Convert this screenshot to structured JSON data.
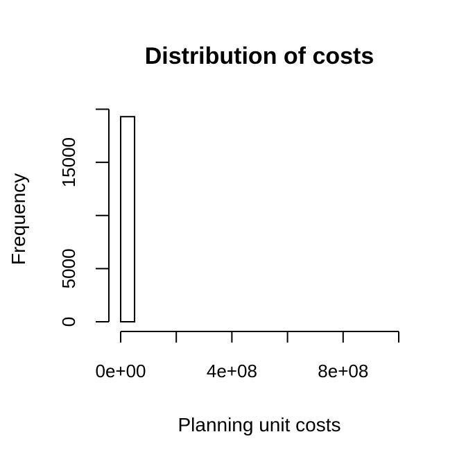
{
  "chart_data": {
    "type": "bar",
    "title": "Distribution of costs",
    "xlabel": "Planning unit costs",
    "ylabel": "Frequency",
    "xlim": [
      0,
      1000000000
    ],
    "ylim": [
      0,
      20000
    ],
    "x_ticks": [
      0,
      200000000,
      400000000,
      600000000,
      800000000,
      1000000000
    ],
    "x_tick_labels": [
      "0e+00",
      "4e+08",
      "8e+08"
    ],
    "x_tick_label_values": [
      0,
      400000000,
      800000000
    ],
    "y_ticks": [
      0,
      5000,
      10000,
      15000,
      20000
    ],
    "y_tick_labels": [
      "0",
      "5000",
      "15000"
    ],
    "y_tick_label_values": [
      0,
      5000,
      15000
    ],
    "bin_width": 50000000,
    "bins": [
      {
        "x0": 0,
        "x1": 50000000,
        "count": 19300
      },
      {
        "x0": 50000000,
        "x1": 100000000,
        "count": 0
      },
      {
        "x0": 100000000,
        "x1": 150000000,
        "count": 0
      },
      {
        "x0": 150000000,
        "x1": 200000000,
        "count": 0
      },
      {
        "x0": 200000000,
        "x1": 250000000,
        "count": 0
      },
      {
        "x0": 250000000,
        "x1": 300000000,
        "count": 0
      },
      {
        "x0": 300000000,
        "x1": 350000000,
        "count": 0
      },
      {
        "x0": 350000000,
        "x1": 400000000,
        "count": 0
      },
      {
        "x0": 400000000,
        "x1": 450000000,
        "count": 0
      },
      {
        "x0": 450000000,
        "x1": 500000000,
        "count": 0
      },
      {
        "x0": 500000000,
        "x1": 550000000,
        "count": 0
      },
      {
        "x0": 550000000,
        "x1": 600000000,
        "count": 0
      },
      {
        "x0": 600000000,
        "x1": 650000000,
        "count": 0
      },
      {
        "x0": 650000000,
        "x1": 700000000,
        "count": 0
      },
      {
        "x0": 700000000,
        "x1": 750000000,
        "count": 0
      },
      {
        "x0": 750000000,
        "x1": 800000000,
        "count": 0
      },
      {
        "x0": 800000000,
        "x1": 850000000,
        "count": 0
      },
      {
        "x0": 850000000,
        "x1": 900000000,
        "count": 0
      },
      {
        "x0": 900000000,
        "x1": 950000000,
        "count": 0
      },
      {
        "x0": 950000000,
        "x1": 1000000000,
        "count": 0
      }
    ],
    "grid": false,
    "legend": "none"
  }
}
